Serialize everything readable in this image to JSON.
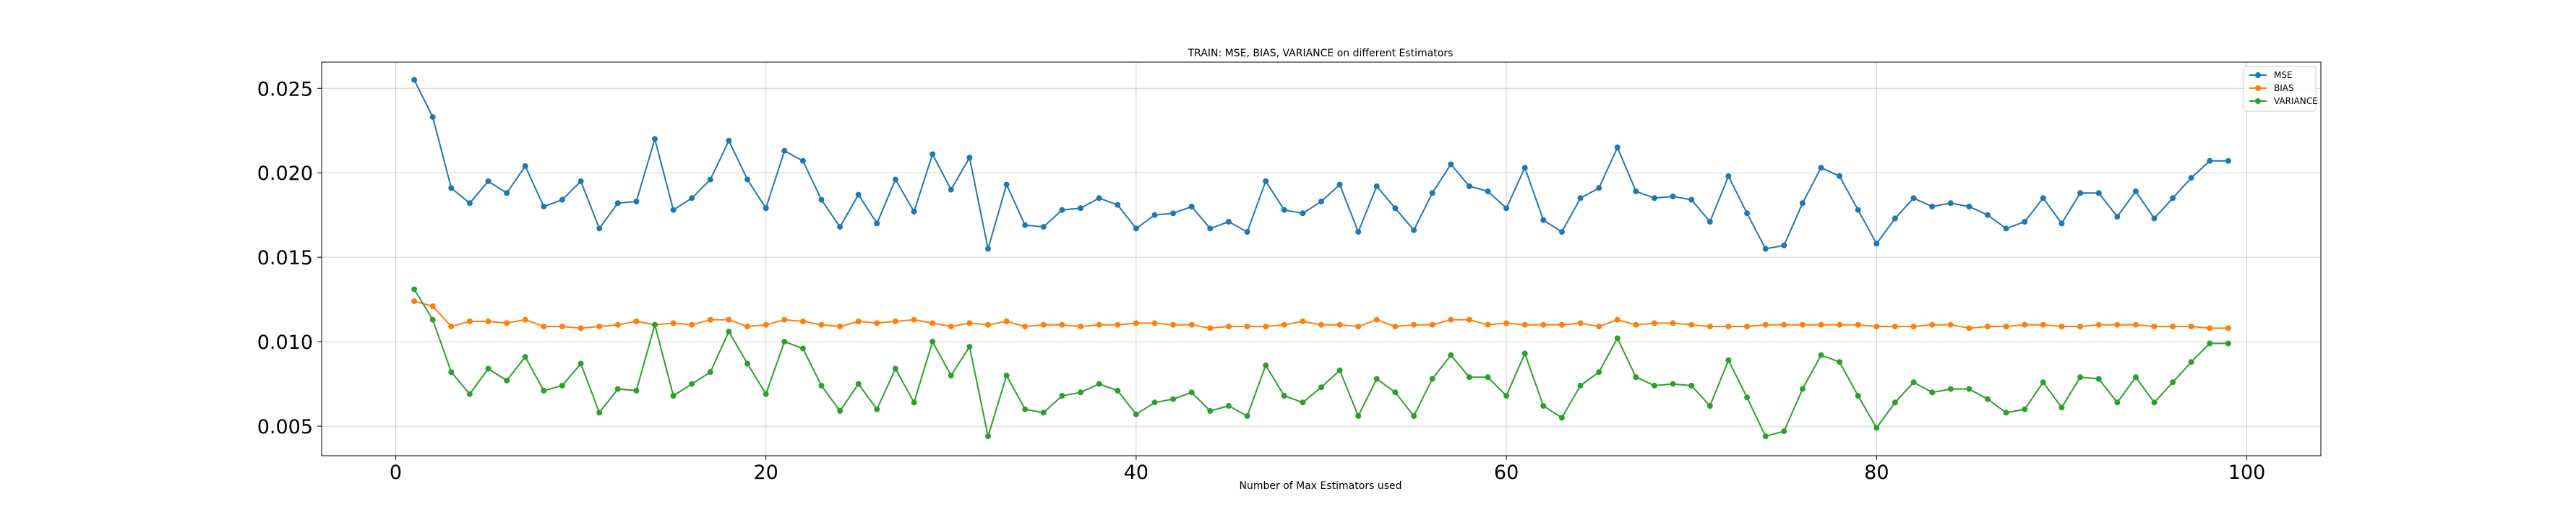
{
  "chart_data": {
    "type": "line",
    "title": "TRAIN: MSE, BIAS, VARIANCE on different Estimators",
    "xlabel": "Number of Max Estimators used",
    "ylabel": "",
    "xlim": [
      -4,
      104
    ],
    "ylim": [
      0.00325,
      0.02655
    ],
    "xticks": [
      0,
      20,
      40,
      60,
      80,
      100
    ],
    "yticks": [
      0.005,
      0.01,
      0.015,
      0.02,
      0.025
    ],
    "ytick_labels": [
      "0.005",
      "0.010",
      "0.015",
      "0.020",
      "0.025"
    ],
    "grid": true,
    "legend_position": "top-right",
    "x": [
      1,
      2,
      3,
      4,
      5,
      6,
      7,
      8,
      9,
      10,
      11,
      12,
      13,
      14,
      15,
      16,
      17,
      18,
      19,
      20,
      21,
      22,
      23,
      24,
      25,
      26,
      27,
      28,
      29,
      30,
      31,
      32,
      33,
      34,
      35,
      36,
      37,
      38,
      39,
      40,
      41,
      42,
      43,
      44,
      45,
      46,
      47,
      48,
      49,
      50,
      51,
      52,
      53,
      54,
      55,
      56,
      57,
      58,
      59,
      60,
      61,
      62,
      63,
      64,
      65,
      66,
      67,
      68,
      69,
      70,
      71,
      72,
      73,
      74,
      75,
      76,
      77,
      78,
      79,
      80,
      81,
      82,
      83,
      84,
      85,
      86,
      87,
      88,
      89,
      90,
      91,
      92,
      93,
      94,
      95,
      96,
      97,
      98,
      99
    ],
    "series": [
      {
        "name": "MSE",
        "color": "#1f77b4",
        "values": [
          0.0255,
          0.0233,
          0.0191,
          0.0182,
          0.0195,
          0.0188,
          0.0204,
          0.018,
          0.0184,
          0.0195,
          0.0167,
          0.0182,
          0.0183,
          0.022,
          0.0178,
          0.0185,
          0.0196,
          0.0219,
          0.0196,
          0.0179,
          0.0213,
          0.0207,
          0.0184,
          0.0168,
          0.0187,
          0.017,
          0.0196,
          0.0177,
          0.0211,
          0.019,
          0.0209,
          0.0155,
          0.0193,
          0.0169,
          0.0168,
          0.0178,
          0.0179,
          0.0185,
          0.0181,
          0.0167,
          0.0175,
          0.0176,
          0.018,
          0.0167,
          0.0171,
          0.0165,
          0.0195,
          0.0178,
          0.0176,
          0.0183,
          0.0193,
          0.0165,
          0.0192,
          0.0179,
          0.0166,
          0.0188,
          0.0205,
          0.0192,
          0.0189,
          0.0179,
          0.0203,
          0.0172,
          0.0165,
          0.0185,
          0.0191,
          0.0215,
          0.0189,
          0.0185,
          0.0186,
          0.0184,
          0.0171,
          0.0198,
          0.0176,
          0.0155,
          0.0157,
          0.0182,
          0.0203,
          0.0198,
          0.0178,
          0.0158,
          0.0173,
          0.0185,
          0.018,
          0.0182,
          0.018,
          0.0175,
          0.0167,
          0.0171,
          0.0185,
          0.017,
          0.0188,
          0.0188,
          0.0174,
          0.0189,
          0.0173,
          0.0185,
          0.0197,
          0.0207,
          0.0207
        ]
      },
      {
        "name": "BIAS",
        "color": "#ff7f0e",
        "values": [
          0.0124,
          0.0121,
          0.0109,
          0.0112,
          0.0112,
          0.0111,
          0.0113,
          0.0109,
          0.0109,
          0.0108,
          0.0109,
          0.011,
          0.0112,
          0.011,
          0.0111,
          0.011,
          0.0113,
          0.0113,
          0.0109,
          0.011,
          0.0113,
          0.0112,
          0.011,
          0.0109,
          0.0112,
          0.0111,
          0.0112,
          0.0113,
          0.0111,
          0.0109,
          0.0111,
          0.011,
          0.0112,
          0.0109,
          0.011,
          0.011,
          0.0109,
          0.011,
          0.011,
          0.0111,
          0.0111,
          0.011,
          0.011,
          0.0108,
          0.0109,
          0.0109,
          0.0109,
          0.011,
          0.0112,
          0.011,
          0.011,
          0.0109,
          0.0113,
          0.0109,
          0.011,
          0.011,
          0.0113,
          0.0113,
          0.011,
          0.0111,
          0.011,
          0.011,
          0.011,
          0.0111,
          0.0109,
          0.0113,
          0.011,
          0.0111,
          0.0111,
          0.011,
          0.0109,
          0.0109,
          0.0109,
          0.011,
          0.011,
          0.011,
          0.011,
          0.011,
          0.011,
          0.0109,
          0.0109,
          0.0109,
          0.011,
          0.011,
          0.0108,
          0.0109,
          0.0109,
          0.011,
          0.011,
          0.0109,
          0.0109,
          0.011,
          0.011,
          0.011,
          0.0109,
          0.0109,
          0.0109,
          0.0108,
          0.0108
        ]
      },
      {
        "name": "VARIANCE",
        "color": "#2ca02c",
        "values": [
          0.0131,
          0.0113,
          0.0082,
          0.0069,
          0.0084,
          0.0077,
          0.0091,
          0.0071,
          0.0074,
          0.0087,
          0.0058,
          0.0072,
          0.0071,
          0.011,
          0.0068,
          0.0075,
          0.0082,
          0.0106,
          0.0087,
          0.0069,
          0.01,
          0.0096,
          0.0074,
          0.0059,
          0.0075,
          0.006,
          0.0084,
          0.0064,
          0.01,
          0.008,
          0.0097,
          0.0044,
          0.008,
          0.006,
          0.0058,
          0.0068,
          0.007,
          0.0075,
          0.0071,
          0.0057,
          0.0064,
          0.0066,
          0.007,
          0.0059,
          0.0062,
          0.0056,
          0.0086,
          0.0068,
          0.0064,
          0.0073,
          0.0083,
          0.0056,
          0.0078,
          0.007,
          0.0056,
          0.0078,
          0.0092,
          0.0079,
          0.0079,
          0.0068,
          0.0093,
          0.0062,
          0.0055,
          0.0074,
          0.0082,
          0.0102,
          0.0079,
          0.0074,
          0.0075,
          0.0074,
          0.0062,
          0.0089,
          0.0067,
          0.0044,
          0.0047,
          0.0072,
          0.0092,
          0.0088,
          0.0068,
          0.0049,
          0.0064,
          0.0076,
          0.007,
          0.0072,
          0.0072,
          0.0066,
          0.0058,
          0.006,
          0.0076,
          0.0061,
          0.0079,
          0.0078,
          0.0064,
          0.0079,
          0.0064,
          0.0076,
          0.0088,
          0.0099,
          0.0099
        ]
      }
    ]
  }
}
